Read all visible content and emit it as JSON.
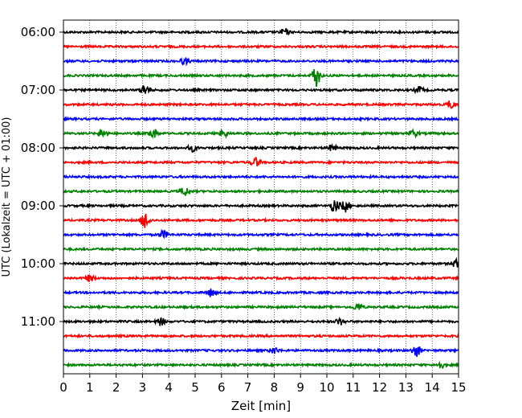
{
  "chart_data": {
    "type": "line",
    "title": "",
    "xlabel": "Zeit  [min]",
    "ylabel": "UTC (Lokalzeit = UTC + 01:00)",
    "xlim": [
      0,
      15
    ],
    "x_ticks": [
      "0",
      "1",
      "2",
      "3",
      "4",
      "5",
      "6",
      "7",
      "8",
      "9",
      "10",
      "11",
      "12",
      "13",
      "14",
      "15"
    ],
    "y_ticks": [
      "06:00",
      "07:00",
      "08:00",
      "09:00",
      "10:00",
      "11:00"
    ],
    "grid_x": true,
    "grid_style": "dotted",
    "trace_interval_min": 15,
    "traces": [
      {
        "start": "06:00",
        "color": "#000000",
        "events": [
          [
            8.4,
            0.5
          ]
        ]
      },
      {
        "start": "06:15",
        "color": "#ff0000",
        "events": []
      },
      {
        "start": "06:30",
        "color": "#0000ff",
        "events": [
          [
            4.6,
            0.5
          ]
        ]
      },
      {
        "start": "06:45",
        "color": "#008000",
        "events": [
          [
            9.6,
            1.6
          ]
        ]
      },
      {
        "start": "07:00",
        "color": "#000000",
        "events": [
          [
            3.1,
            0.8
          ],
          [
            13.5,
            0.5
          ]
        ]
      },
      {
        "start": "07:15",
        "color": "#ff0000",
        "events": [
          [
            14.7,
            0.6
          ]
        ]
      },
      {
        "start": "07:30",
        "color": "#0000ff",
        "events": []
      },
      {
        "start": "07:45",
        "color": "#008000",
        "events": [
          [
            1.5,
            0.7
          ],
          [
            3.4,
            0.8
          ],
          [
            6.1,
            0.6
          ],
          [
            13.3,
            0.5
          ]
        ]
      },
      {
        "start": "08:00",
        "color": "#000000",
        "events": [
          [
            4.9,
            0.5
          ],
          [
            10.2,
            0.5
          ]
        ]
      },
      {
        "start": "08:15",
        "color": "#ff0000",
        "events": [
          [
            7.3,
            0.7
          ]
        ]
      },
      {
        "start": "08:30",
        "color": "#0000ff",
        "events": []
      },
      {
        "start": "08:45",
        "color": "#008000",
        "events": [
          [
            4.6,
            0.7
          ]
        ]
      },
      {
        "start": "09:00",
        "color": "#000000",
        "events": [
          [
            10.3,
            1.0
          ],
          [
            10.7,
            0.9
          ]
        ]
      },
      {
        "start": "09:15",
        "color": "#ff0000",
        "events": [
          [
            3.1,
            1.3
          ]
        ]
      },
      {
        "start": "09:30",
        "color": "#0000ff",
        "events": [
          [
            3.8,
            0.6
          ]
        ]
      },
      {
        "start": "09:45",
        "color": "#008000",
        "events": []
      },
      {
        "start": "10:00",
        "color": "#000000",
        "events": [
          [
            14.9,
            0.6
          ]
        ]
      },
      {
        "start": "10:15",
        "color": "#ff0000",
        "events": [
          [
            1.0,
            0.5
          ]
        ]
      },
      {
        "start": "10:30",
        "color": "#0000ff",
        "events": [
          [
            5.6,
            0.6
          ]
        ]
      },
      {
        "start": "10:45",
        "color": "#008000",
        "events": [
          [
            11.2,
            0.6
          ]
        ]
      },
      {
        "start": "11:00",
        "color": "#000000",
        "events": [
          [
            3.7,
            0.6
          ],
          [
            10.5,
            0.5
          ]
        ]
      },
      {
        "start": "11:15",
        "color": "#ff0000",
        "events": []
      },
      {
        "start": "11:30",
        "color": "#0000ff",
        "events": [
          [
            13.4,
            0.9
          ],
          [
            8.0,
            0.5
          ]
        ]
      },
      {
        "start": "11:45",
        "color": "#008000",
        "events": [
          [
            14.3,
            0.5
          ]
        ]
      }
    ]
  }
}
